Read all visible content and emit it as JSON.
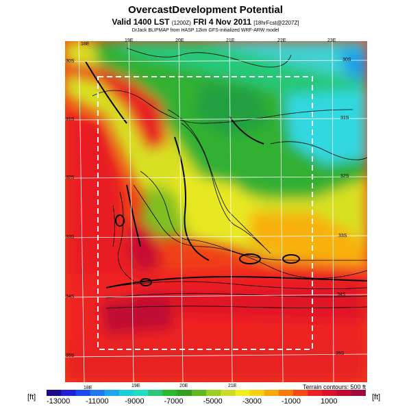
{
  "header": {
    "title": "OvercastDevelopment Potential",
    "subtitle_main": "Valid 1400 LST",
    "subtitle_utc": "(1200Z)",
    "subtitle_date": "FRI 4 Nov 2011",
    "subtitle_fcst": "[18hrFcst@2207Z]",
    "credit": "DrJack BLIPMAP from HASP 12km GFS-initialized WRF-ARW model"
  },
  "map": {
    "longitude_labels_top": [
      "18E",
      "19E",
      "20E",
      "21E",
      "22E",
      "23E"
    ],
    "longitude_labels_bottom": [
      "18E",
      "19E",
      "20E",
      "21E"
    ],
    "latitude_labels_left": [
      "30S",
      "31S",
      "32S",
      "33S",
      "34S",
      "35S"
    ],
    "latitude_labels_right": [
      "30S",
      "31S",
      "32S",
      "33S",
      "34S",
      "35S"
    ],
    "terrain_note": "Terrain contours: 500 ft"
  },
  "colorbar": {
    "unit_left": "[ft]",
    "unit_right": "[ft]",
    "labels": [
      "-13000",
      "-11000",
      "-9000",
      "-7000",
      "-5000",
      "-3000",
      "-1000",
      "1000"
    ],
    "colors": [
      "#1a0a8a",
      "#2020d8",
      "#1848f0",
      "#1e78f0",
      "#1aa8ea",
      "#1ad0d8",
      "#20dcc0",
      "#28c878",
      "#28b828",
      "#30a020",
      "#60b820",
      "#98d020",
      "#c8dc28",
      "#f0f020",
      "#f8d010",
      "#f8a808",
      "#f87808",
      "#f84818",
      "#ec2020",
      "#d81028",
      "#c00830",
      "#a00840"
    ]
  },
  "chart_data": {
    "type": "heatmap",
    "title": "OvercastDevelopment Potential",
    "variable": "Overcast development potential",
    "units": "ft",
    "colorbar_range": [
      -13000,
      1000
    ],
    "colorbar_ticks": [
      -13000,
      -11000,
      -9000,
      -7000,
      -5000,
      -3000,
      -1000,
      1000
    ],
    "longitudes_labeled": [
      "18E",
      "19E",
      "20E",
      "21E",
      "22E",
      "23E"
    ],
    "latitudes_labeled": [
      "30S",
      "31S",
      "32S",
      "33S",
      "34S",
      "35S"
    ],
    "contour_interval": "500 ft"
  }
}
